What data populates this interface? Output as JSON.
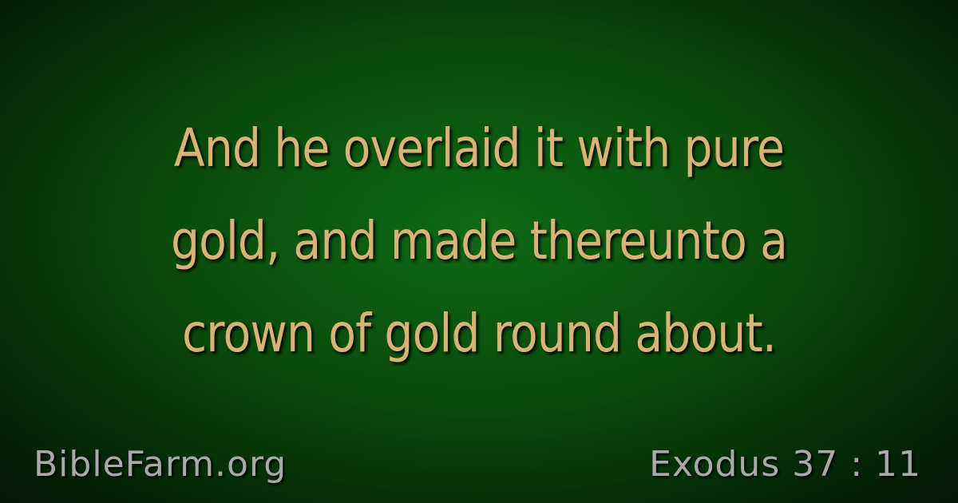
{
  "verse": {
    "text": "And he overlaid it with pure gold, and made thereunto a crown of gold round about."
  },
  "footer": {
    "site": "BibleFarm.org",
    "reference": "Exodus 37 : 11"
  },
  "colors": {
    "verse_text": "#d8b277",
    "footer_text": "#a9a9a9",
    "background_center": "#0f6a14",
    "background_edge": "#031503"
  }
}
